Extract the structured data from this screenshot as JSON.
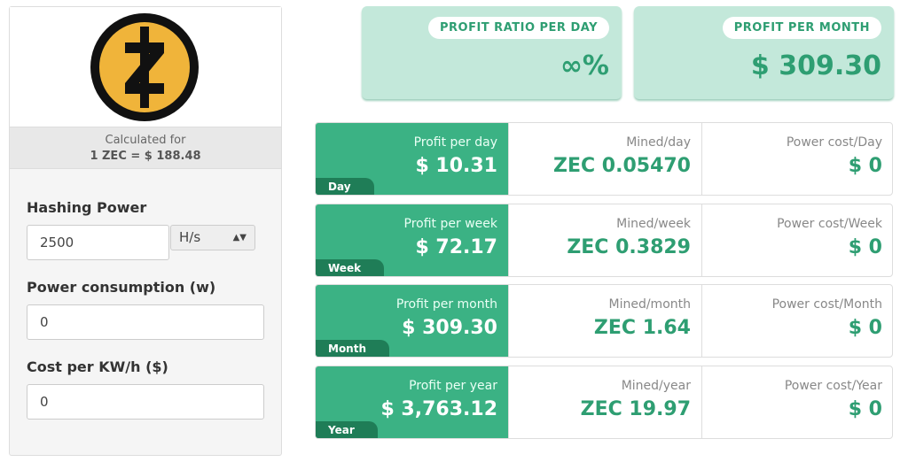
{
  "sidebar": {
    "calculated_for": "Calculated for",
    "rate": "1 ZEC = $ 188.48",
    "fields": [
      {
        "label": "Hashing Power",
        "value": "2500",
        "unit": "H/s"
      },
      {
        "label": "Power consumption (w)",
        "value": "0"
      },
      {
        "label": "Cost per KW/h ($)",
        "value": "0"
      }
    ]
  },
  "summary": [
    {
      "label": "PROFIT RATIO PER DAY",
      "value": "∞%"
    },
    {
      "label": "PROFIT PER MONTH",
      "value": "$ 309.30"
    }
  ],
  "rows": [
    {
      "period": "Day",
      "profit_label": "Profit per day",
      "profit": "$ 10.31",
      "mined_label": "Mined/day",
      "mined": "ZEC 0.05470",
      "power_label": "Power cost/Day",
      "power": "$ 0"
    },
    {
      "period": "Week",
      "profit_label": "Profit per week",
      "profit": "$ 72.17",
      "mined_label": "Mined/week",
      "mined": "ZEC 0.3829",
      "power_label": "Power cost/Week",
      "power": "$ 0"
    },
    {
      "period": "Month",
      "profit_label": "Profit per month",
      "profit": "$ 309.30",
      "mined_label": "Mined/month",
      "mined": "ZEC 1.64",
      "power_label": "Power cost/Month",
      "power": "$ 0"
    },
    {
      "period": "Year",
      "profit_label": "Profit per year",
      "profit": "$ 3,763.12",
      "mined_label": "Mined/year",
      "mined": "ZEC 19.97",
      "power_label": "Power cost/Year",
      "power": "$ 0"
    }
  ]
}
